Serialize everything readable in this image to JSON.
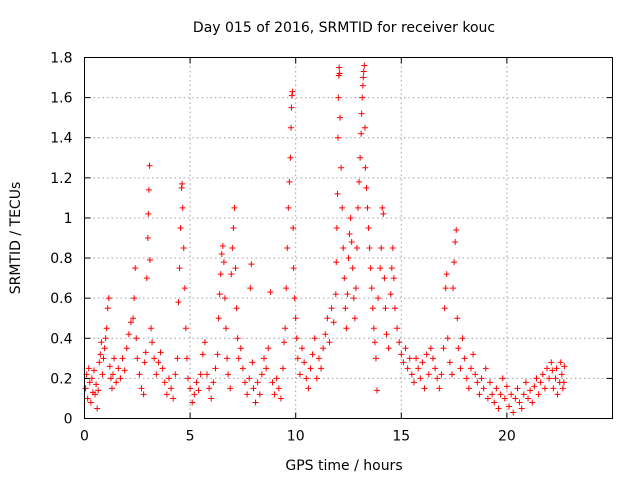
{
  "chart_data": {
    "type": "scatter",
    "title": "Day 015 of 2016, SRMTID for receiver kouc",
    "xlabel": "GPS time / hours",
    "ylabel": "SRMTID / TECUs",
    "xlim": [
      0,
      25
    ],
    "ylim": [
      0,
      1.8
    ],
    "xticks": [
      0,
      5,
      10,
      15,
      20
    ],
    "xtick_labels": [
      "0",
      "5",
      "10",
      "15",
      "20"
    ],
    "yticks": [
      0,
      0.2,
      0.4,
      0.6,
      0.8,
      1,
      1.2,
      1.4,
      1.6,
      1.8
    ],
    "ytick_labels": [
      "0",
      "0.2",
      "0.4",
      "0.6",
      "0.8",
      "1",
      "1.2",
      "1.4",
      "1.6",
      "1.8"
    ],
    "grid": true,
    "marker": "+",
    "color": "#ff0000",
    "series": [
      {
        "name": "SRMTID",
        "points": [
          [
            0.05,
            0.15
          ],
          [
            0.1,
            0.22
          ],
          [
            0.15,
            0.1
          ],
          [
            0.2,
            0.25
          ],
          [
            0.25,
            0.18
          ],
          [
            0.3,
            0.08
          ],
          [
            0.35,
            0.2
          ],
          [
            0.4,
            0.13
          ],
          [
            0.45,
            0.24
          ],
          [
            0.5,
            0.12
          ],
          [
            0.55,
            0.17
          ],
          [
            0.6,
            0.05
          ],
          [
            0.65,
            0.14
          ],
          [
            0.7,
            0.28
          ],
          [
            0.75,
            0.32
          ],
          [
            0.8,
            0.38
          ],
          [
            0.85,
            0.22
          ],
          [
            0.9,
            0.3
          ],
          [
            0.95,
            0.35
          ],
          [
            1.0,
            0.4
          ],
          [
            1.05,
            0.45
          ],
          [
            1.1,
            0.55
          ],
          [
            1.15,
            0.6
          ],
          [
            1.2,
            0.26
          ],
          [
            1.25,
            0.2
          ],
          [
            1.3,
            0.15
          ],
          [
            1.35,
            0.22
          ],
          [
            1.4,
            0.3
          ],
          [
            1.5,
            0.18
          ],
          [
            1.6,
            0.25
          ],
          [
            1.7,
            0.2
          ],
          [
            1.8,
            0.3
          ],
          [
            1.9,
            0.24
          ],
          [
            2.0,
            0.35
          ],
          [
            2.1,
            0.42
          ],
          [
            2.2,
            0.48
          ],
          [
            2.3,
            0.5
          ],
          [
            2.35,
            0.6
          ],
          [
            2.4,
            0.75
          ],
          [
            2.45,
            0.4
          ],
          [
            2.5,
            0.3
          ],
          [
            2.6,
            0.22
          ],
          [
            2.7,
            0.15
          ],
          [
            2.8,
            0.12
          ],
          [
            2.85,
            0.28
          ],
          [
            2.9,
            0.33
          ],
          [
            2.95,
            0.7
          ],
          [
            3.0,
            0.9
          ],
          [
            3.02,
            1.02
          ],
          [
            3.05,
            1.14
          ],
          [
            3.08,
            1.26
          ],
          [
            3.1,
            0.79
          ],
          [
            3.15,
            0.45
          ],
          [
            3.2,
            0.38
          ],
          [
            3.3,
            0.3
          ],
          [
            3.4,
            0.22
          ],
          [
            3.5,
            0.28
          ],
          [
            3.6,
            0.33
          ],
          [
            3.7,
            0.25
          ],
          [
            3.8,
            0.18
          ],
          [
            3.9,
            0.12
          ],
          [
            4.0,
            0.2
          ],
          [
            4.1,
            0.15
          ],
          [
            4.2,
            0.1
          ],
          [
            4.3,
            0.22
          ],
          [
            4.4,
            0.3
          ],
          [
            4.45,
            0.58
          ],
          [
            4.5,
            0.75
          ],
          [
            4.55,
            0.95
          ],
          [
            4.6,
            1.15
          ],
          [
            4.62,
            1.17
          ],
          [
            4.65,
            1.05
          ],
          [
            4.7,
            0.85
          ],
          [
            4.75,
            0.65
          ],
          [
            4.8,
            0.45
          ],
          [
            4.85,
            0.3
          ],
          [
            4.9,
            0.2
          ],
          [
            5.0,
            0.15
          ],
          [
            5.1,
            0.08
          ],
          [
            5.2,
            0.12
          ],
          [
            5.3,
            0.18
          ],
          [
            5.4,
            0.14
          ],
          [
            5.5,
            0.22
          ],
          [
            5.6,
            0.32
          ],
          [
            5.7,
            0.38
          ],
          [
            5.8,
            0.22
          ],
          [
            5.9,
            0.15
          ],
          [
            6.0,
            0.1
          ],
          [
            6.1,
            0.18
          ],
          [
            6.2,
            0.25
          ],
          [
            6.3,
            0.32
          ],
          [
            6.35,
            0.5
          ],
          [
            6.4,
            0.62
          ],
          [
            6.45,
            0.72
          ],
          [
            6.5,
            0.82
          ],
          [
            6.55,
            0.86
          ],
          [
            6.6,
            0.78
          ],
          [
            6.65,
            0.6
          ],
          [
            6.7,
            0.45
          ],
          [
            6.75,
            0.3
          ],
          [
            6.8,
            0.22
          ],
          [
            6.9,
            0.15
          ],
          [
            6.95,
            0.72
          ],
          [
            7.0,
            0.85
          ],
          [
            7.05,
            0.95
          ],
          [
            7.1,
            1.05
          ],
          [
            7.15,
            0.75
          ],
          [
            7.2,
            0.55
          ],
          [
            7.25,
            0.4
          ],
          [
            7.3,
            0.3
          ],
          [
            7.4,
            0.35
          ],
          [
            7.5,
            0.25
          ],
          [
            7.6,
            0.18
          ],
          [
            7.7,
            0.12
          ],
          [
            7.8,
            0.2
          ],
          [
            7.85,
            0.65
          ],
          [
            7.9,
            0.77
          ],
          [
            7.95,
            0.28
          ],
          [
            8.0,
            0.15
          ],
          [
            8.1,
            0.08
          ],
          [
            8.2,
            0.18
          ],
          [
            8.3,
            0.12
          ],
          [
            8.4,
            0.22
          ],
          [
            8.5,
            0.3
          ],
          [
            8.6,
            0.25
          ],
          [
            8.7,
            0.35
          ],
          [
            8.8,
            0.63
          ],
          [
            8.9,
            0.18
          ],
          [
            9.0,
            0.12
          ],
          [
            9.1,
            0.2
          ],
          [
            9.2,
            0.15
          ],
          [
            9.3,
            0.1
          ],
          [
            9.4,
            0.25
          ],
          [
            9.45,
            0.38
          ],
          [
            9.5,
            0.45
          ],
          [
            9.55,
            0.65
          ],
          [
            9.6,
            0.85
          ],
          [
            9.65,
            1.05
          ],
          [
            9.7,
            1.18
          ],
          [
            9.75,
            1.3
          ],
          [
            9.78,
            1.45
          ],
          [
            9.8,
            1.55
          ],
          [
            9.82,
            1.61
          ],
          [
            9.85,
            1.63
          ],
          [
            9.88,
            0.95
          ],
          [
            9.9,
            0.75
          ],
          [
            9.95,
            0.6
          ],
          [
            10.0,
            0.5
          ],
          [
            10.05,
            0.4
          ],
          [
            10.1,
            0.3
          ],
          [
            10.2,
            0.22
          ],
          [
            10.3,
            0.35
          ],
          [
            10.4,
            0.28
          ],
          [
            10.5,
            0.2
          ],
          [
            10.6,
            0.15
          ],
          [
            10.7,
            0.25
          ],
          [
            10.8,
            0.32
          ],
          [
            10.9,
            0.4
          ],
          [
            11.0,
            0.2
          ],
          [
            11.1,
            0.3
          ],
          [
            11.2,
            0.25
          ],
          [
            11.3,
            0.35
          ],
          [
            11.4,
            0.42
          ],
          [
            11.5,
            0.5
          ],
          [
            11.6,
            0.38
          ],
          [
            11.7,
            0.55
          ],
          [
            11.8,
            0.48
          ],
          [
            11.9,
            0.62
          ],
          [
            11.92,
            0.78
          ],
          [
            11.95,
            0.95
          ],
          [
            11.98,
            1.12
          ],
          [
            12.0,
            1.4
          ],
          [
            12.02,
            1.6
          ],
          [
            12.04,
            1.71
          ],
          [
            12.06,
            1.75
          ],
          [
            12.08,
            1.72
          ],
          [
            12.1,
            1.5
          ],
          [
            12.15,
            1.25
          ],
          [
            12.2,
            1.05
          ],
          [
            12.25,
            0.85
          ],
          [
            12.3,
            0.7
          ],
          [
            12.35,
            0.55
          ],
          [
            12.4,
            0.45
          ],
          [
            12.45,
            0.62
          ],
          [
            12.5,
            0.8
          ],
          [
            12.55,
            0.92
          ],
          [
            12.6,
            1.0
          ],
          [
            12.65,
            0.88
          ],
          [
            12.7,
            0.75
          ],
          [
            12.75,
            0.6
          ],
          [
            12.8,
            0.5
          ],
          [
            12.85,
            0.65
          ],
          [
            12.9,
            0.85
          ],
          [
            12.95,
            1.05
          ],
          [
            13.0,
            1.18
          ],
          [
            13.05,
            1.3
          ],
          [
            13.1,
            1.42
          ],
          [
            13.12,
            1.52
          ],
          [
            13.15,
            1.6
          ],
          [
            13.18,
            1.66
          ],
          [
            13.2,
            1.7
          ],
          [
            13.22,
            1.73
          ],
          [
            13.25,
            1.76
          ],
          [
            13.28,
            1.45
          ],
          [
            13.3,
            1.25
          ],
          [
            13.35,
            1.15
          ],
          [
            13.4,
            1.05
          ],
          [
            13.45,
            0.95
          ],
          [
            13.5,
            0.85
          ],
          [
            13.55,
            0.75
          ],
          [
            13.6,
            0.65
          ],
          [
            13.65,
            0.55
          ],
          [
            13.7,
            0.45
          ],
          [
            13.75,
            0.38
          ],
          [
            13.8,
            0.3
          ],
          [
            13.85,
            0.14
          ],
          [
            13.9,
            0.6
          ],
          [
            14.0,
            0.75
          ],
          [
            14.05,
            0.85
          ],
          [
            14.1,
            1.05
          ],
          [
            14.15,
            1.02
          ],
          [
            14.2,
            0.7
          ],
          [
            14.25,
            0.55
          ],
          [
            14.3,
            0.42
          ],
          [
            14.4,
            0.35
          ],
          [
            14.5,
            0.62
          ],
          [
            14.55,
            0.75
          ],
          [
            14.6,
            0.85
          ],
          [
            14.65,
            0.7
          ],
          [
            14.7,
            0.55
          ],
          [
            14.8,
            0.45
          ],
          [
            14.9,
            0.38
          ],
          [
            15.0,
            0.32
          ],
          [
            15.1,
            0.28
          ],
          [
            15.2,
            0.35
          ],
          [
            15.3,
            0.25
          ],
          [
            15.4,
            0.3
          ],
          [
            15.5,
            0.22
          ],
          [
            15.6,
            0.18
          ],
          [
            15.7,
            0.3
          ],
          [
            15.8,
            0.25
          ],
          [
            15.9,
            0.2
          ],
          [
            16.0,
            0.28
          ],
          [
            16.1,
            0.15
          ],
          [
            16.2,
            0.32
          ],
          [
            16.3,
            0.22
          ],
          [
            16.4,
            0.35
          ],
          [
            16.5,
            0.3
          ],
          [
            16.6,
            0.25
          ],
          [
            16.7,
            0.2
          ],
          [
            16.8,
            0.15
          ],
          [
            16.9,
            0.22
          ],
          [
            17.0,
            0.35
          ],
          [
            17.05,
            0.55
          ],
          [
            17.1,
            0.65
          ],
          [
            17.15,
            0.72
          ],
          [
            17.2,
            0.4
          ],
          [
            17.3,
            0.28
          ],
          [
            17.4,
            0.22
          ],
          [
            17.45,
            0.65
          ],
          [
            17.5,
            0.78
          ],
          [
            17.55,
            0.88
          ],
          [
            17.6,
            0.94
          ],
          [
            17.65,
            0.5
          ],
          [
            17.7,
            0.35
          ],
          [
            17.8,
            0.25
          ],
          [
            17.9,
            0.4
          ],
          [
            18.0,
            0.3
          ],
          [
            18.1,
            0.2
          ],
          [
            18.2,
            0.15
          ],
          [
            18.3,
            0.25
          ],
          [
            18.4,
            0.32
          ],
          [
            18.5,
            0.22
          ],
          [
            18.6,
            0.18
          ],
          [
            18.7,
            0.12
          ],
          [
            18.8,
            0.2
          ],
          [
            18.9,
            0.15
          ],
          [
            19.0,
            0.25
          ],
          [
            19.1,
            0.1
          ],
          [
            19.2,
            0.18
          ],
          [
            19.3,
            0.12
          ],
          [
            19.4,
            0.08
          ],
          [
            19.5,
            0.15
          ],
          [
            19.6,
            0.05
          ],
          [
            19.7,
            0.12
          ],
          [
            19.8,
            0.2
          ],
          [
            19.9,
            0.1
          ],
          [
            20.0,
            0.16
          ],
          [
            20.1,
            0.06
          ],
          [
            20.2,
            0.12
          ],
          [
            20.3,
            0.03
          ],
          [
            20.4,
            0.1
          ],
          [
            20.5,
            0.15
          ],
          [
            20.6,
            0.08
          ],
          [
            20.7,
            0.05
          ],
          [
            20.8,
            0.12
          ],
          [
            20.9,
            0.18
          ],
          [
            21.0,
            0.1
          ],
          [
            21.1,
            0.14
          ],
          [
            21.2,
            0.08
          ],
          [
            21.3,
            0.16
          ],
          [
            21.4,
            0.2
          ],
          [
            21.5,
            0.12
          ],
          [
            21.6,
            0.18
          ],
          [
            21.7,
            0.22
          ],
          [
            21.8,
            0.15
          ],
          [
            21.9,
            0.25
          ],
          [
            22.0,
            0.2
          ],
          [
            22.1,
            0.28
          ],
          [
            22.15,
            0.24
          ],
          [
            22.2,
            0.15
          ],
          [
            22.3,
            0.2
          ],
          [
            22.35,
            0.25
          ],
          [
            22.4,
            0.12
          ],
          [
            22.5,
            0.18
          ],
          [
            22.55,
            0.28
          ],
          [
            22.6,
            0.22
          ],
          [
            22.65,
            0.15
          ],
          [
            22.7,
            0.18
          ],
          [
            22.72,
            0.26
          ]
        ]
      }
    ]
  }
}
